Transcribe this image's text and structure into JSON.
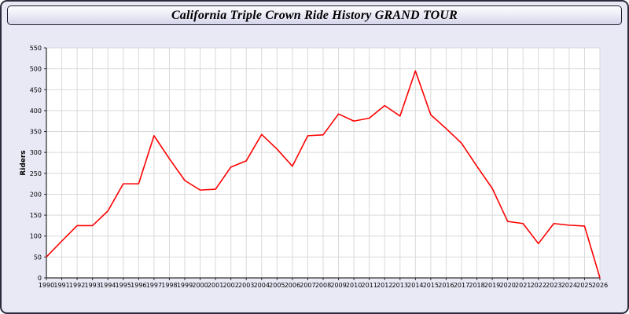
{
  "window": {
    "title": "California Triple Crown Ride History GRAND TOUR"
  },
  "chart_data": {
    "type": "line",
    "title": "California Triple Crown Ride History GRAND TOUR",
    "xlabel": "",
    "ylabel": "Riders",
    "ylim": [
      0,
      550
    ],
    "ytick_step": 50,
    "grid": true,
    "legend_position": "none",
    "line_color": "#ff0000",
    "page_background": "#e9e9f6",
    "plot_background": "#ffffff",
    "gridline_color": "#d9d9d9",
    "categories": [
      "1990",
      "1991",
      "1992",
      "1993",
      "1994",
      "1995",
      "1996",
      "1997",
      "1998",
      "1999",
      "2000",
      "2001",
      "2002",
      "2003",
      "2004",
      "2005",
      "2006",
      "2007",
      "2008",
      "2009",
      "2010",
      "2011",
      "2012",
      "2013",
      "2014",
      "2015",
      "2016",
      "2017",
      "2018",
      "2019",
      "2020",
      "2021",
      "2022",
      "2023",
      "2024",
      "2025",
      "2026"
    ],
    "values": [
      50,
      88,
      125,
      125,
      160,
      225,
      225,
      340,
      285,
      233,
      210,
      212,
      265,
      280,
      343,
      308,
      267,
      340,
      342,
      392,
      375,
      382,
      412,
      387,
      495,
      390,
      357,
      322,
      267,
      214,
      135,
      130,
      82,
      130,
      126,
      124,
      0
    ]
  }
}
